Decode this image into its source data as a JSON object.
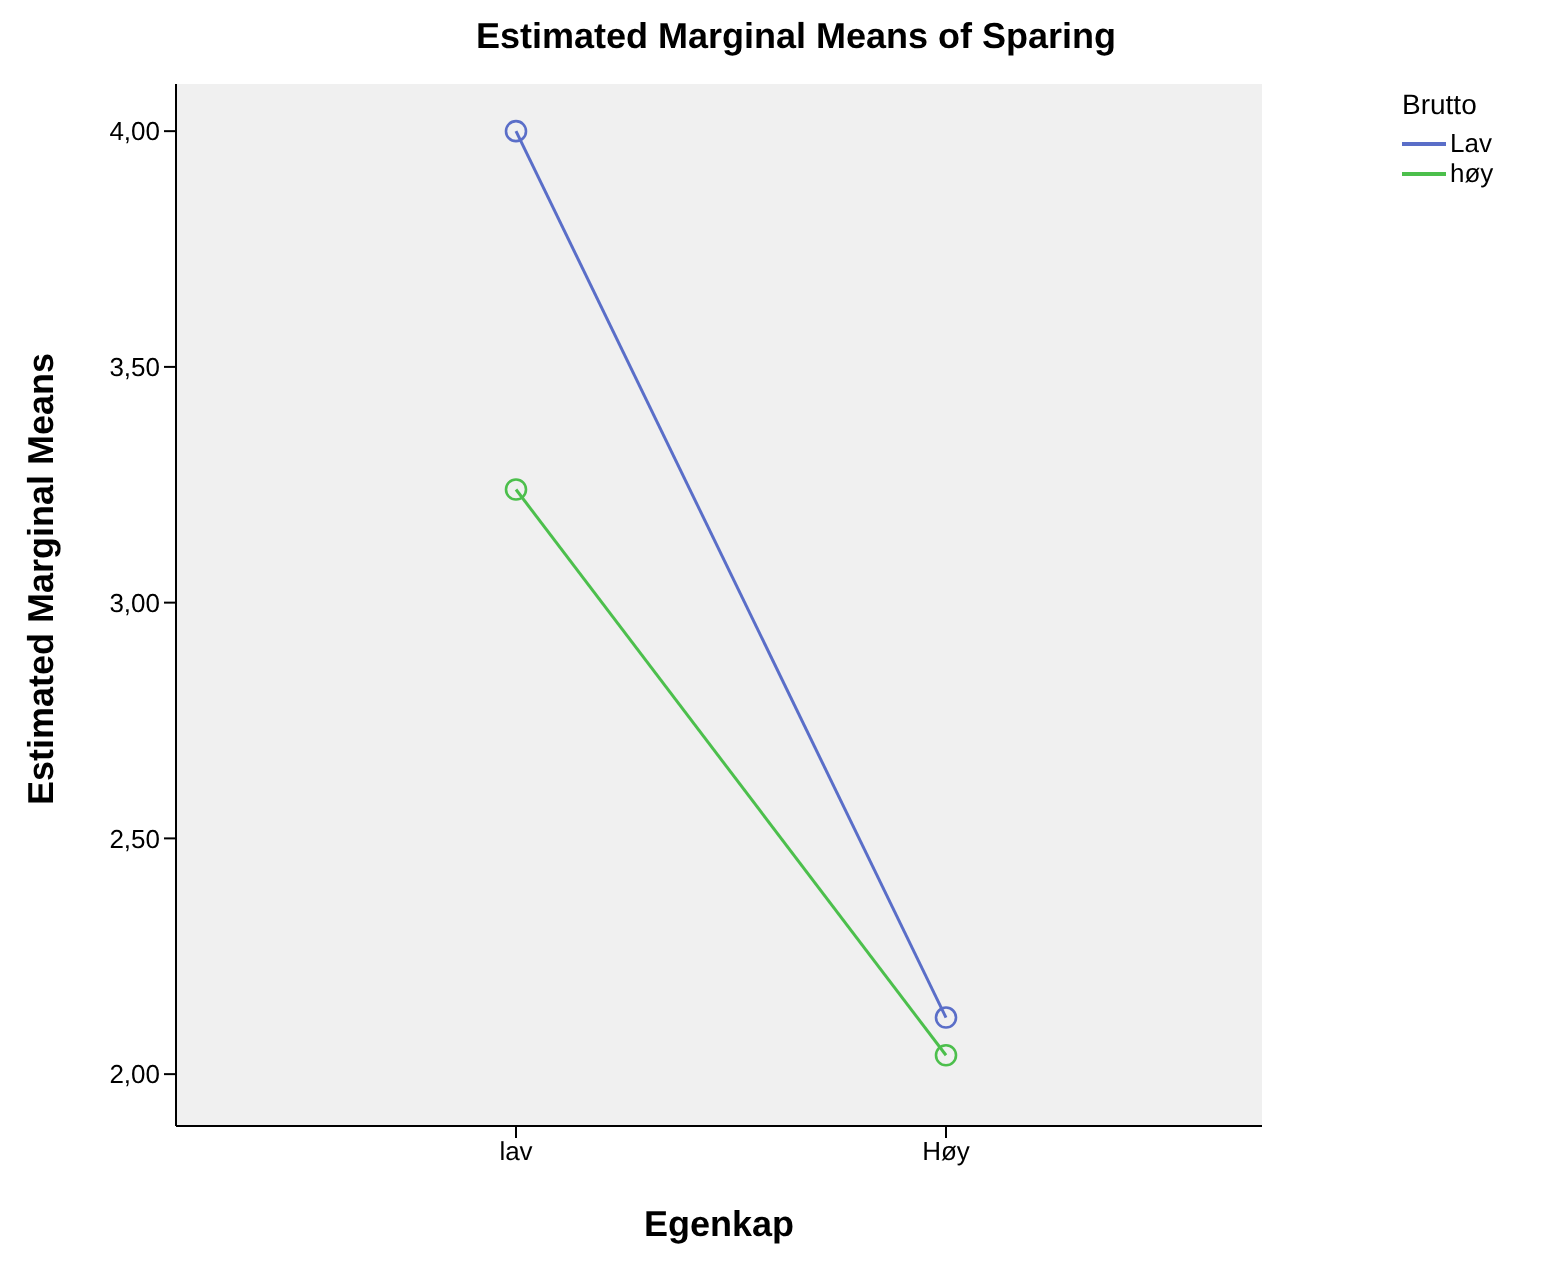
{
  "chart_data": {
    "type": "line",
    "title": "Estimated Marginal Means of Sparing",
    "xlabel": "Egenkap",
    "ylabel": "Estimated Marginal Means",
    "legend_title": "Brutto",
    "categories": [
      "lav",
      "Høy"
    ],
    "series": [
      {
        "name": "Lav",
        "color": "#5a6ec8",
        "values": [
          4.0,
          2.12
        ]
      },
      {
        "name": "høy",
        "color": "#4cbf4c",
        "values": [
          3.24,
          2.04
        ]
      }
    ],
    "ylim": [
      1.89,
      4.1
    ],
    "yticks": [
      {
        "value": 2,
        "label": "2,00"
      },
      {
        "value": 2.5,
        "label": "2,50"
      },
      {
        "value": 3,
        "label": "3,00"
      },
      {
        "value": 3.5,
        "label": "3,50"
      },
      {
        "value": 4,
        "label": "4,00"
      }
    ],
    "grid": false,
    "legend": "top right",
    "marker": "circle",
    "line_style": "solid"
  }
}
